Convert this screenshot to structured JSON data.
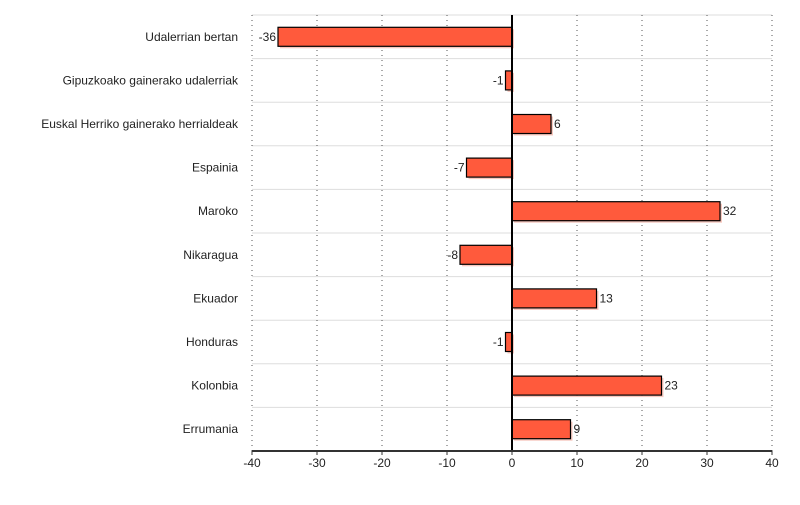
{
  "chart_data": {
    "type": "bar",
    "orientation": "horizontal",
    "categories": [
      "Udalerrian bertan",
      "Gipuzkoako gainerako udalerriak",
      "Euskal Herriko gainerako herrialdeak",
      "Espainia",
      "Maroko",
      "Nikaragua",
      "Ekuador",
      "Honduras",
      "Kolonbia",
      "Errumania"
    ],
    "values": [
      -36,
      -1,
      6,
      -7,
      32,
      -8,
      13,
      -1,
      23,
      9
    ],
    "xlim": [
      -40,
      40
    ],
    "xticks": [
      -40,
      -30,
      -20,
      -10,
      0,
      10,
      20,
      30,
      40
    ],
    "title": "",
    "xlabel": "",
    "ylabel": "",
    "grid": "vertical dotted",
    "bar_color": "#ff5a3c",
    "bar_stroke": "#000000"
  }
}
